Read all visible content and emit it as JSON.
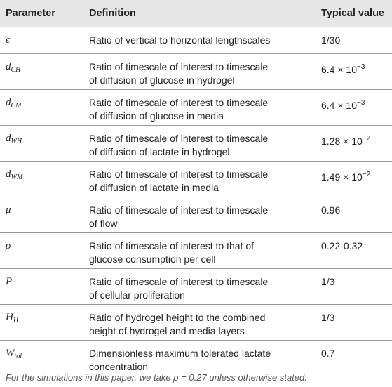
{
  "table": {
    "header": [
      "Parameter",
      "Definition",
      "Typical value"
    ],
    "rows": [
      {
        "parameter": {
          "base": "ϵ"
        },
        "definition": [
          "Ratio of vertical to horizontal lengthscales"
        ],
        "value": {
          "text": "1/30"
        }
      },
      {
        "parameter": {
          "base": "d",
          "sub": "CH"
        },
        "definition": [
          "Ratio of timescale of interest to timescale",
          "of diffusion of glucose in hydrogel"
        ],
        "value": {
          "text": "6.4 × 10",
          "sup": "−3"
        }
      },
      {
        "parameter": {
          "base": "d",
          "sub": "CM"
        },
        "definition": [
          "Ratio of timescale of interest to timescale",
          "of diffusion of glucose in media"
        ],
        "value": {
          "text": "6.4 × 10",
          "sup": "−3"
        }
      },
      {
        "parameter": {
          "base": "d",
          "sub": "WH"
        },
        "definition": [
          "Ratio of timescale of interest to timescale",
          "of diffusion of lactate in hydrogel"
        ],
        "value": {
          "text": "1.28 × 10",
          "sup": "−2"
        }
      },
      {
        "parameter": {
          "base": "d",
          "sub": "WM"
        },
        "definition": [
          "Ratio of timescale of interest to timescale",
          "of diffusion of lactate in media"
        ],
        "value": {
          "text": "1.49 × 10",
          "sup": "−2"
        }
      },
      {
        "parameter": {
          "base": "μ"
        },
        "definition": [
          "Ratio of timescale of interest to timescale",
          "of flow"
        ],
        "value": {
          "text": "0.96"
        }
      },
      {
        "parameter": {
          "base": "ρ"
        },
        "definition": [
          "Ratio of timescale of interest to that of",
          "glucose consumption per cell"
        ],
        "value": {
          "text": "0.22-0.32"
        }
      },
      {
        "parameter": {
          "base": "P"
        },
        "definition": [
          "Ratio of timescale of interest to timescale",
          "of cellular proliferation"
        ],
        "value": {
          "text": "1/3"
        }
      },
      {
        "parameter": {
          "base": "H",
          "sub": "H"
        },
        "definition": [
          "Ratio of hydrogel height to the combined",
          "height of hydrogel and media layers"
        ],
        "value": {
          "text": "1/3"
        }
      },
      {
        "parameter": {
          "base": "W",
          "sub": "tol"
        },
        "definition": [
          "Dimensionless maximum tolerated lactate",
          "concentration"
        ],
        "value": {
          "text": "0.7"
        }
      }
    ],
    "footnote": "For the simulations in this paper, we take ρ = 0.27 unless otherwise stated."
  }
}
